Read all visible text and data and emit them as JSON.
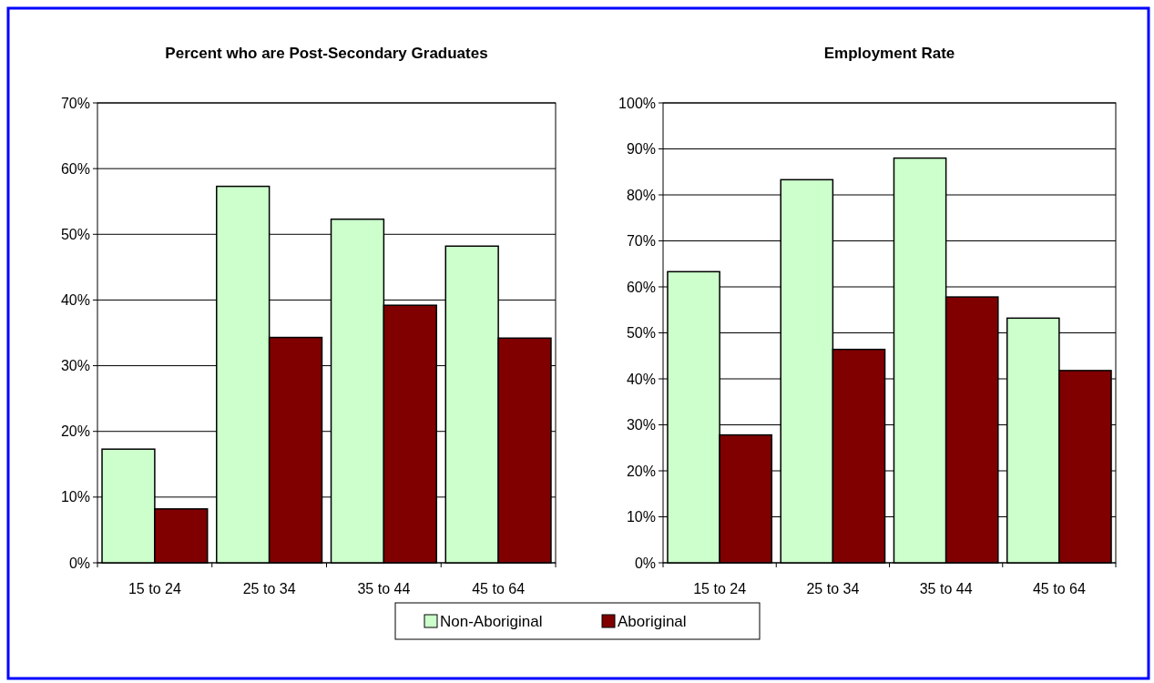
{
  "chart_data": [
    {
      "type": "bar",
      "title": "Percent who are Post-Secondary Graduates",
      "categories": [
        "15 to 24",
        "25 to 34",
        "35 to 44",
        "45 to 64"
      ],
      "series": [
        {
          "name": "Non-Aboriginal",
          "color": "#ccffcc",
          "values": [
            17.3,
            57.3,
            52.3,
            48.2
          ]
        },
        {
          "name": "Aboriginal",
          "color": "#800000",
          "values": [
            8.2,
            34.3,
            39.2,
            34.2
          ]
        }
      ],
      "ylim": [
        0,
        70
      ],
      "yticks": [
        {
          "value": 0,
          "label": "0%"
        },
        {
          "value": 10,
          "label": "10%"
        },
        {
          "value": 20,
          "label": "20%"
        },
        {
          "value": 30,
          "label": "30%"
        },
        {
          "value": 40,
          "label": "40%"
        },
        {
          "value": 50,
          "label": "50%"
        },
        {
          "value": 60,
          "label": "60%"
        },
        {
          "value": 70,
          "label": "70%"
        }
      ],
      "grid": "y",
      "legend": "bottom"
    },
    {
      "type": "bar",
      "title": "Employment Rate",
      "categories": [
        "15 to 24",
        "25 to 34",
        "35 to 44",
        "45 to 64"
      ],
      "series": [
        {
          "color": "#ccffcc",
          "values": [
            63.3,
            83.3,
            88.0,
            53.2
          ]
        },
        {
          "color": "#800000",
          "values": [
            27.8,
            46.4,
            57.8,
            41.8
          ]
        }
      ],
      "ylim": [
        0,
        100
      ],
      "yticks": [
        {
          "value": 0,
          "label": "0%"
        },
        {
          "value": 10,
          "label": "10%"
        },
        {
          "value": 20,
          "label": "20%"
        },
        {
          "value": 30,
          "label": "30%"
        },
        {
          "value": 40,
          "label": "40%"
        },
        {
          "value": 50,
          "label": "50%"
        },
        {
          "value": 60,
          "label": "60%"
        },
        {
          "value": 70,
          "label": "70%"
        },
        {
          "value": 80,
          "label": "80%"
        },
        {
          "value": 90,
          "label": "90%"
        },
        {
          "value": 100,
          "label": "100%"
        }
      ],
      "grid": "y"
    }
  ]
}
